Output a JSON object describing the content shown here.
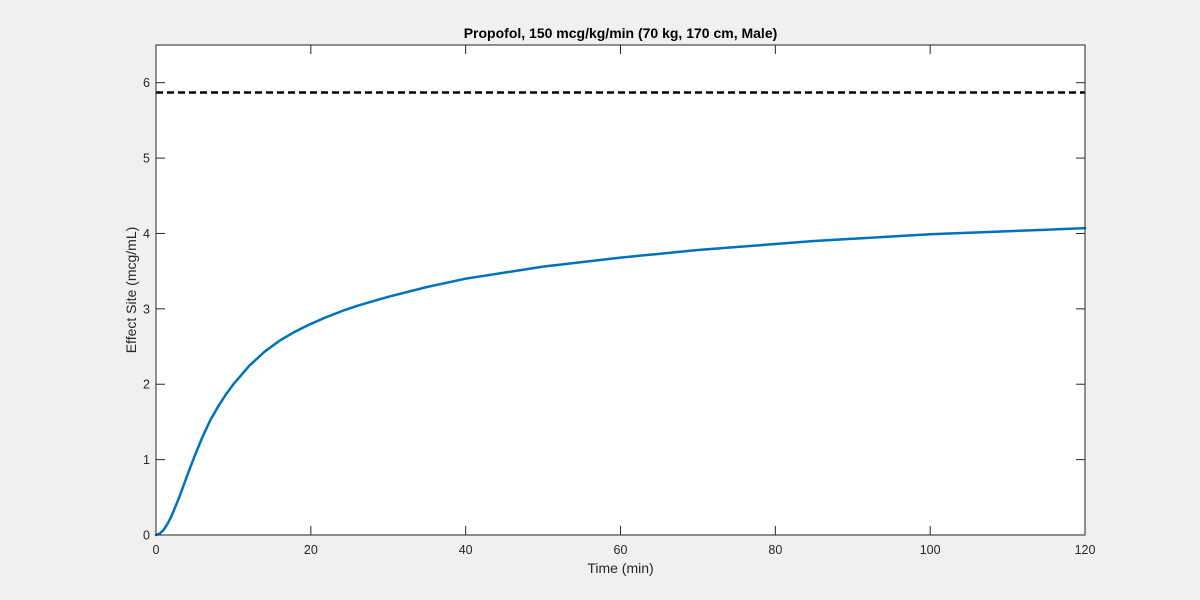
{
  "chart_data": {
    "type": "line",
    "title": "Propofol, 150 mcg/kg/min (70 kg, 170 cm, Male)",
    "xlabel": "Time (min)",
    "ylabel": "Effect Site (mcg/mL)",
    "xlim": [
      0,
      120
    ],
    "ylim": [
      0,
      6.5
    ],
    "xticks": [
      0,
      20,
      40,
      60,
      80,
      100,
      120
    ],
    "yticks": [
      0,
      1,
      2,
      3,
      4,
      5,
      6
    ],
    "xtick_labels": [
      "0",
      "20",
      "40",
      "60",
      "80",
      "100",
      "120"
    ],
    "ytick_labels": [
      "0",
      "1",
      "2",
      "3",
      "4",
      "5",
      "6"
    ],
    "grid": false,
    "series": [
      {
        "color": "#0072bd",
        "style": "solid",
        "x": [
          0,
          0.5,
          1,
          1.5,
          2,
          3,
          4,
          5,
          6,
          7,
          8,
          9,
          10,
          12,
          14,
          16,
          18,
          20,
          22,
          24,
          26,
          28,
          30,
          35,
          40,
          45,
          50,
          55,
          60,
          65,
          70,
          75,
          80,
          85,
          90,
          95,
          100,
          105,
          110,
          115,
          120
        ],
        "y": [
          0,
          0.02,
          0.07,
          0.15,
          0.25,
          0.5,
          0.78,
          1.05,
          1.3,
          1.52,
          1.7,
          1.86,
          2.0,
          2.24,
          2.43,
          2.58,
          2.7,
          2.8,
          2.89,
          2.97,
          3.04,
          3.1,
          3.16,
          3.29,
          3.4,
          3.48,
          3.56,
          3.62,
          3.68,
          3.73,
          3.78,
          3.82,
          3.86,
          3.9,
          3.93,
          3.96,
          3.99,
          4.01,
          4.03,
          4.05,
          4.07
        ]
      },
      {
        "color": "#000000",
        "style": "dashed",
        "x": [
          0,
          120
        ],
        "y": [
          5.87,
          5.87
        ]
      }
    ]
  }
}
